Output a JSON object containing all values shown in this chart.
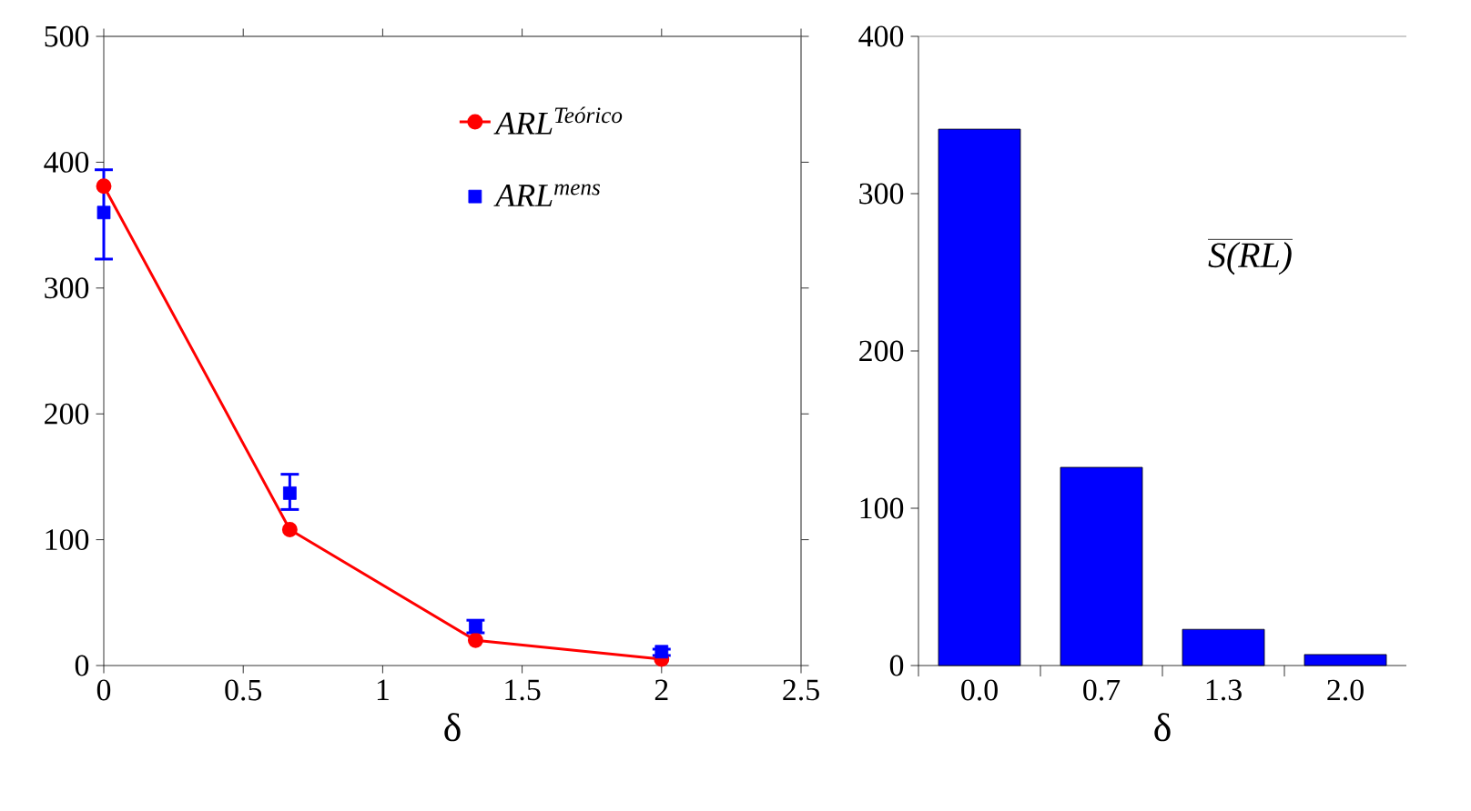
{
  "chart_data": [
    {
      "type": "line",
      "xlabel": "δ",
      "x": [
        0,
        0.667,
        1.333,
        2
      ],
      "xlim": [
        0,
        2.5
      ],
      "xticks": [
        0,
        0.5,
        1,
        1.5,
        2,
        2.5
      ],
      "ylim": [
        0,
        500
      ],
      "yticks": [
        0,
        100,
        200,
        300,
        400,
        500
      ],
      "legend": "top right",
      "grid": false,
      "series": [
        {
          "name": "ARL$^{Teórico}$",
          "type": "line",
          "marker": "circle",
          "color": "#ff0000",
          "values": [
            381,
            108,
            20,
            5
          ]
        },
        {
          "name": "ARL$^{mens}$",
          "type": "scatter",
          "marker": "square",
          "color": "#0000ff",
          "values": [
            360,
            137,
            31,
            11
          ],
          "errors": [
            [
              323,
              394
            ],
            [
              124,
              152
            ],
            [
              26,
              36
            ],
            [
              8,
              13
            ]
          ]
        }
      ]
    },
    {
      "type": "bar",
      "xlabel": "δ",
      "categories": [
        "0.0",
        "0.7",
        "1.3",
        "2.0"
      ],
      "values": [
        341,
        126,
        23,
        7
      ],
      "color": "#0000ff",
      "ylim": [
        0,
        400
      ],
      "yticks": [
        0,
        100,
        200,
        300,
        400
      ],
      "grid": false,
      "annotations": [
        "S(RL)"
      ]
    }
  ]
}
